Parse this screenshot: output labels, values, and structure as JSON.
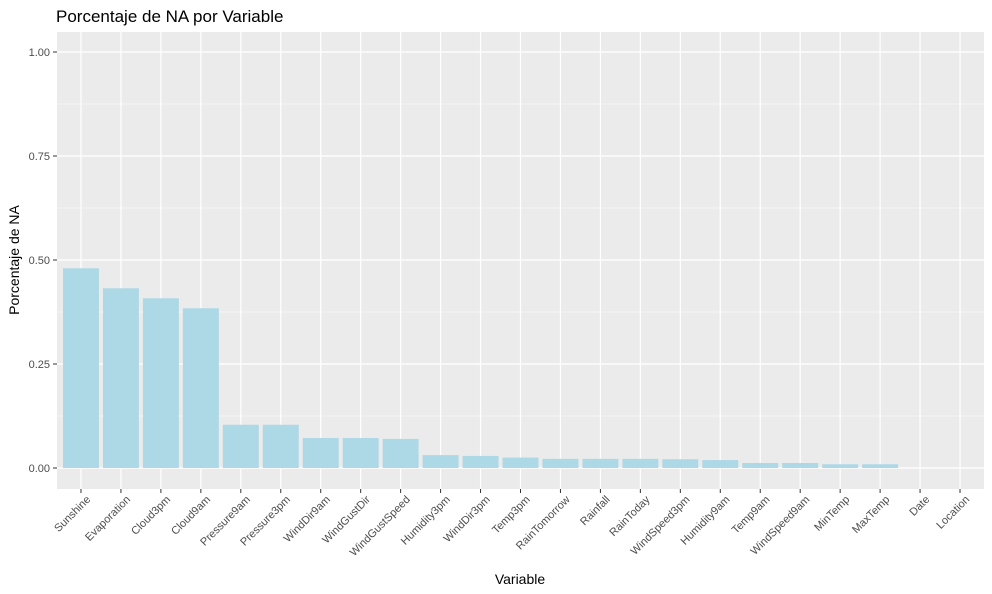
{
  "chart_data": {
    "type": "bar",
    "title": "Porcentaje de NA por Variable",
    "xlabel": "Variable",
    "ylabel": "Porcentaje de NA",
    "ylim": [
      0,
      1
    ],
    "yticks": [
      "0.00",
      "0.25",
      "0.50",
      "0.75",
      "1.00"
    ],
    "categories": [
      "Sunshine",
      "Evaporation",
      "Cloud3pm",
      "Cloud9am",
      "Pressure9am",
      "Pressure3pm",
      "WindDir9am",
      "WindGustDir",
      "WindGustSpeed",
      "Humidity3pm",
      "WindDir3pm",
      "Temp3pm",
      "RainTomorrow",
      "Rainfall",
      "RainToday",
      "WindSpeed3pm",
      "Humidity9am",
      "Temp9am",
      "WindSpeed9am",
      "MinTemp",
      "MaxTemp",
      "Date",
      "Location"
    ],
    "values": [
      0.48,
      0.432,
      0.408,
      0.384,
      0.104,
      0.104,
      0.072,
      0.072,
      0.07,
      0.031,
      0.029,
      0.025,
      0.022,
      0.022,
      0.022,
      0.021,
      0.019,
      0.012,
      0.012,
      0.009,
      0.009,
      0.0,
      0.0
    ],
    "grid": true,
    "bar_color": "#ADD8E6",
    "panel_color": "#EBEBEB",
    "gridline_color": "#FFFFFF"
  }
}
